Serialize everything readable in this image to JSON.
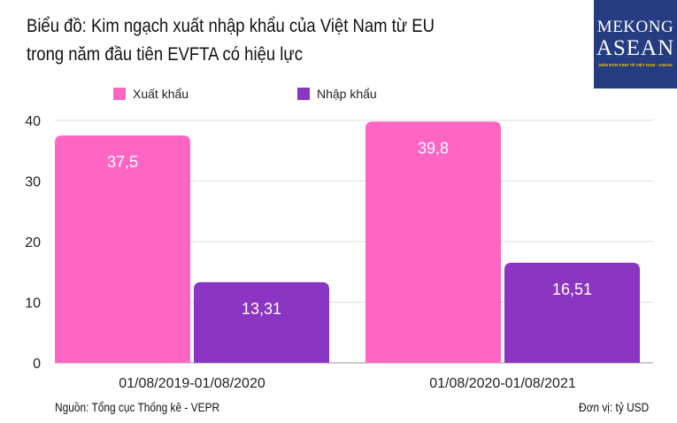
{
  "title_lines": [
    "Biểu đồ: Kim ngạch xuất nhập khẩu của Việt Nam từ EU",
    "trong năm đầu tiên EVFTA có hiệu lực"
  ],
  "logo": {
    "line1": "MEKONG",
    "line2": "ASEAN",
    "tagline": "DIỄN ĐÀN KINH TẾ VIỆT NAM - ASEAN"
  },
  "source": "Nguồn:  Tổng cục Thống kê - VEPR",
  "unit": "Đơn vị: tỷ USD",
  "chart_data": {
    "type": "bar",
    "categories": [
      "01/08/2019-01/08/2020",
      "01/08/2020-01/08/2021"
    ],
    "series": [
      {
        "name": "Xuất khẩu",
        "values": [
          37.5,
          39.8
        ],
        "labels": [
          "37,5",
          "39,8"
        ],
        "color": "#ff66c4"
      },
      {
        "name": "Nhập khẩu",
        "values": [
          13.31,
          16.51
        ],
        "labels": [
          "13,31",
          "16,51"
        ],
        "color": "#8b35c3"
      }
    ],
    "ylim": [
      0,
      40
    ],
    "yticks": [
      0,
      10,
      20,
      30,
      40
    ],
    "grid": true,
    "legend": "top-left"
  }
}
